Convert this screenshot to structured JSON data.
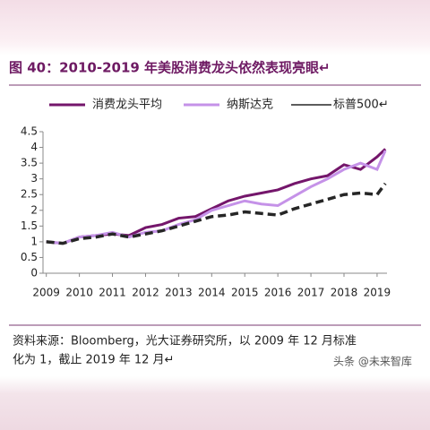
{
  "chart_data": {
    "type": "line",
    "title": "图 40：2010-2019 年美股消费龙头依然表现亮眼↵",
    "x": [
      2009,
      2009.5,
      2010,
      2010.5,
      2011,
      2011.5,
      2012,
      2012.5,
      2013,
      2013.5,
      2014,
      2014.5,
      2015,
      2015.5,
      2016,
      2016.5,
      2017,
      2017.5,
      2018,
      2018.5,
      2019,
      2019.25
    ],
    "series": [
      {
        "name": "消费龙头平均",
        "color": "#74166b",
        "dash": false,
        "values": [
          1.0,
          0.95,
          1.15,
          1.2,
          1.25,
          1.2,
          1.45,
          1.55,
          1.75,
          1.8,
          2.05,
          2.3,
          2.45,
          2.55,
          2.65,
          2.85,
          3.0,
          3.1,
          3.45,
          3.3,
          3.7,
          3.95
        ]
      },
      {
        "name": "纳斯达克",
        "color": "#c592e8",
        "dash": false,
        "values": [
          1.0,
          0.95,
          1.15,
          1.2,
          1.3,
          1.15,
          1.3,
          1.35,
          1.55,
          1.7,
          2.0,
          2.15,
          2.3,
          2.2,
          2.15,
          2.45,
          2.75,
          3.0,
          3.3,
          3.5,
          3.3,
          3.9
        ]
      },
      {
        "name": "标普500↵",
        "color": "#262626",
        "dash": true,
        "values": [
          1.0,
          0.95,
          1.1,
          1.15,
          1.25,
          1.15,
          1.25,
          1.35,
          1.5,
          1.65,
          1.8,
          1.85,
          1.95,
          1.9,
          1.85,
          2.05,
          2.2,
          2.35,
          2.5,
          2.55,
          2.5,
          2.85
        ]
      }
    ],
    "xlim": [
      2008.9,
      2019.3
    ],
    "xticks": [
      2009,
      2010,
      2011,
      2012,
      2013,
      2014,
      2015,
      2016,
      2017,
      2018,
      2019
    ],
    "ylim": [
      0,
      4.5
    ],
    "yticks": [
      0,
      0.5,
      1,
      1.5,
      2,
      2.5,
      3,
      3.5,
      4,
      4.5
    ]
  },
  "source": [
    "资料来源：Bloomberg，光大证券研究所，以 2009 年 12 月标准",
    "化为 1，截止 2019 年 12 月↵"
  ],
  "watermark": "头条 @未来智库"
}
